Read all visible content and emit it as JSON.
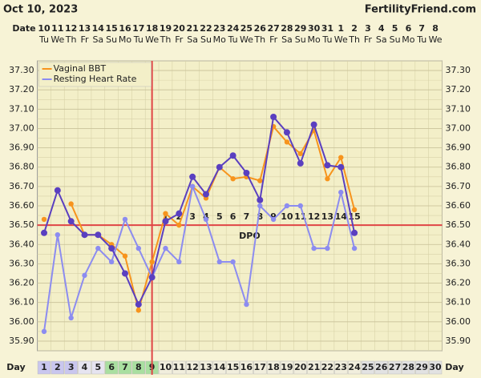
{
  "header": {
    "date": "Oct 10, 2023",
    "site": "FertilityFriend.com"
  },
  "chart_data": {
    "type": "line",
    "date_label": "Date",
    "day_label": "Day",
    "dates": [
      "10",
      "11",
      "12",
      "13",
      "14",
      "15",
      "16",
      "17",
      "18",
      "19",
      "20",
      "21",
      "22",
      "23",
      "24",
      "25",
      "26",
      "27",
      "28",
      "29",
      "30",
      "31",
      "1",
      "2",
      "3",
      "4",
      "5",
      "6",
      "7",
      "8"
    ],
    "weekdays": [
      "Tu",
      "We",
      "Th",
      "Fr",
      "Sa",
      "Su",
      "Mo",
      "Tu",
      "We",
      "Th",
      "Fr",
      "Sa",
      "Su",
      "Mo",
      "Tu",
      "We",
      "Th",
      "Fr",
      "Sa",
      "Su",
      "Mo",
      "Tu",
      "We",
      "Th",
      "Fr",
      "Sa",
      "Su",
      "Mo",
      "Tu",
      "We"
    ],
    "categories": [
      1,
      2,
      3,
      4,
      5,
      6,
      7,
      8,
      9,
      10,
      11,
      12,
      13,
      14,
      15,
      16,
      17,
      18,
      19,
      20,
      21,
      22,
      23,
      24,
      25,
      26,
      27,
      28,
      29,
      30
    ],
    "series": [
      {
        "name": "Vaginal BBT",
        "color": "#f7941d",
        "values": [
          36.53,
          null,
          36.61,
          36.45,
          36.45,
          36.4,
          36.34,
          36.06,
          36.31,
          36.56,
          36.5,
          36.7,
          36.64,
          36.8,
          36.74,
          36.75,
          36.73,
          37.01,
          36.93,
          36.87,
          36.99,
          36.74,
          36.85,
          36.58,
          null,
          null,
          null,
          null,
          null,
          null
        ]
      },
      {
        "name": "Resting Heart Rate",
        "color": "#8c8cf0",
        "values": [
          35.95,
          36.45,
          36.02,
          36.24,
          36.38,
          36.31,
          36.53,
          36.38,
          36.23,
          36.38,
          36.31,
          36.7,
          36.53,
          36.31,
          36.31,
          36.09,
          36.6,
          36.53,
          36.6,
          36.6,
          36.38,
          36.38,
          36.67,
          36.38,
          null,
          null,
          null,
          null,
          null,
          null
        ]
      },
      {
        "color": "#5a3fc0",
        "values": [
          36.46,
          36.68,
          36.52,
          36.45,
          36.45,
          36.38,
          36.25,
          36.09,
          36.23,
          36.52,
          36.56,
          36.75,
          36.66,
          36.8,
          36.86,
          36.77,
          36.63,
          37.06,
          36.98,
          36.82,
          37.02,
          36.81,
          36.8,
          36.46,
          null,
          null,
          null,
          null,
          null,
          null
        ]
      }
    ],
    "ylim": [
      35.85,
      37.35
    ],
    "yticks": [
      {
        "value": 37.3,
        "label": "37.30"
      },
      {
        "value": 37.2,
        "label": "37.20"
      },
      {
        "value": 37.1,
        "label": "37.10"
      },
      {
        "value": 37.0,
        "label": "37.00"
      },
      {
        "value": 36.9,
        "label": "36.90"
      },
      {
        "value": 36.8,
        "label": "36.80"
      },
      {
        "value": 36.7,
        "label": "36.70"
      },
      {
        "value": 36.6,
        "label": "36.60"
      },
      {
        "value": 36.5,
        "label": "36.50"
      },
      {
        "value": 36.4,
        "label": "36.40"
      },
      {
        "value": 36.3,
        "label": "36.30"
      },
      {
        "value": 36.2,
        "label": "36.20"
      },
      {
        "value": 36.1,
        "label": "36.10"
      },
      {
        "value": 36.0,
        "label": "36.00"
      },
      {
        "value": 35.9,
        "label": "35.90"
      }
    ],
    "coverline": 36.5,
    "ovulation_day": 9,
    "dpo": [
      null,
      null,
      null,
      null,
      null,
      null,
      null,
      null,
      null,
      1,
      2,
      3,
      4,
      5,
      6,
      7,
      8,
      9,
      10,
      11,
      12,
      13,
      14,
      15,
      null,
      null,
      null,
      null,
      null,
      null
    ],
    "dpo_label": "DPO",
    "grid": true
  }
}
